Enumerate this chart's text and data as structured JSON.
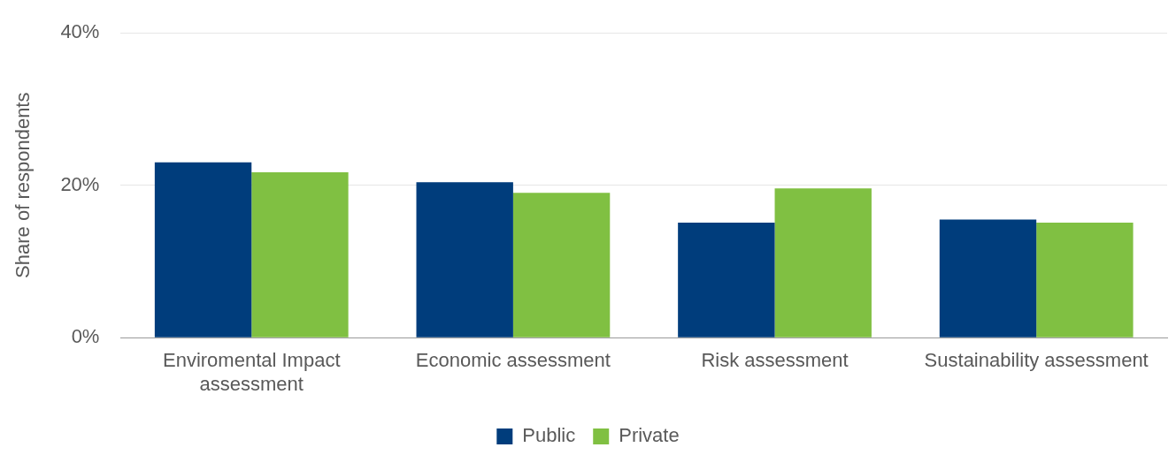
{
  "chart_data": {
    "type": "bar",
    "ylabel": "Share of respondents",
    "categories": [
      "Enviromental Impact assessment",
      "Economic assessment",
      "Risk assessment",
      "Sustainability assessment"
    ],
    "series": [
      {
        "name": "Public",
        "color": "#003d7c",
        "values": [
          23.0,
          20.4,
          15.1,
          15.5
        ]
      },
      {
        "name": "Private",
        "color": "#80c042",
        "values": [
          21.7,
          19.0,
          19.6,
          15.1
        ]
      }
    ],
    "ylim": [
      0,
      40
    ],
    "yticks": [
      {
        "value": 0,
        "label": "0%"
      },
      {
        "value": 20,
        "label": "20%"
      },
      {
        "value": 40,
        "label": "40%"
      }
    ],
    "grid": "y",
    "legend": "bottom"
  }
}
